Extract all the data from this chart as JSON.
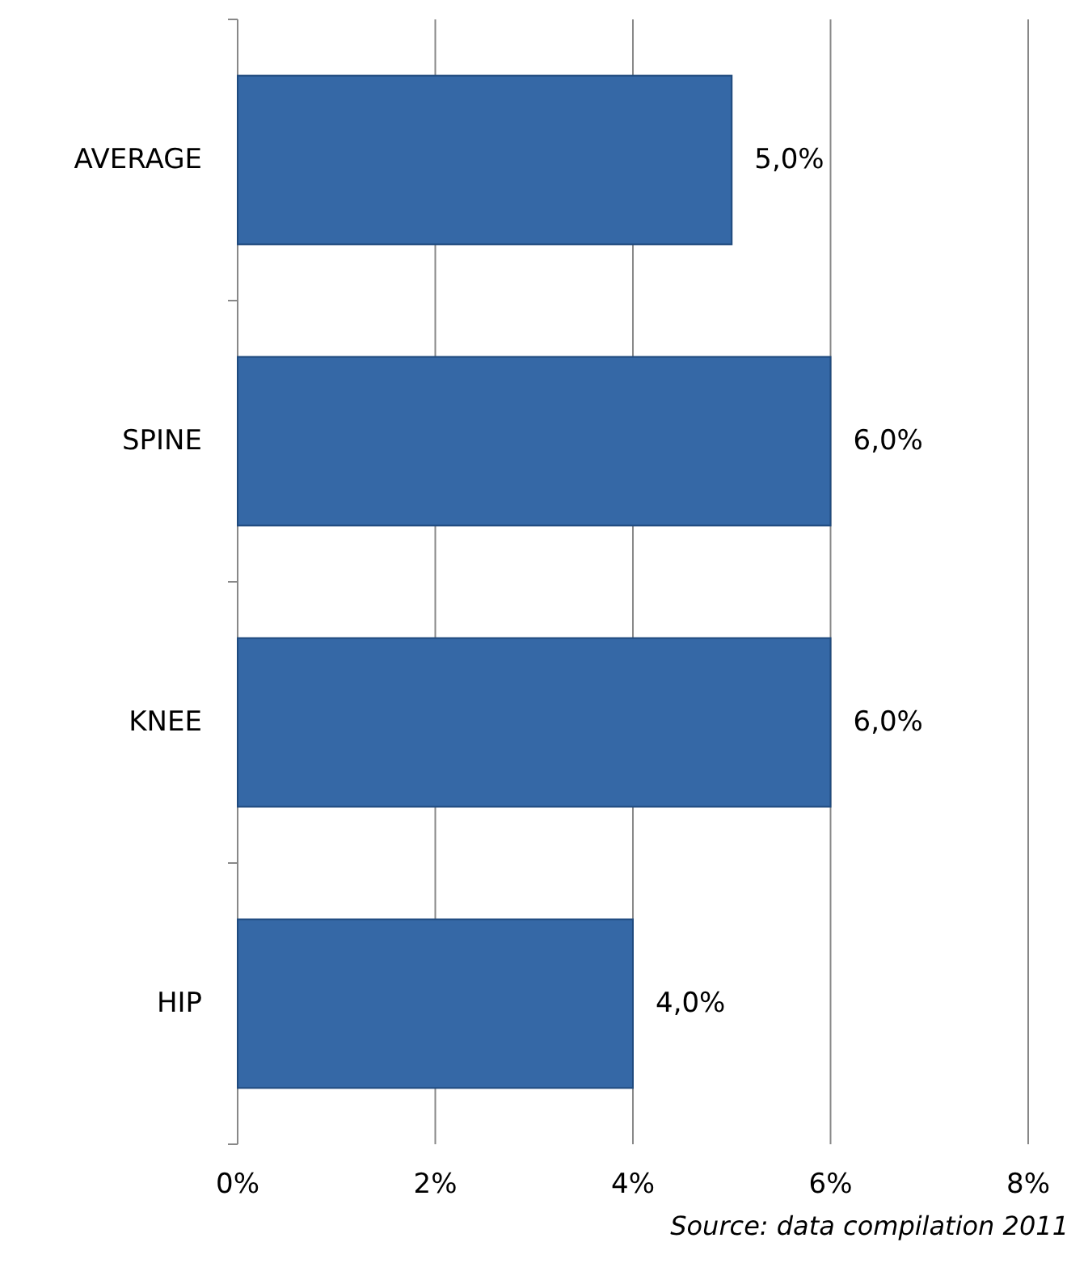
{
  "chart_data": {
    "type": "bar",
    "orientation": "horizontal",
    "categories": [
      "AVERAGE",
      "SPINE",
      "KNEE",
      "HIP"
    ],
    "values": [
      5,
      6,
      6,
      4
    ],
    "value_labels": [
      "5,0%",
      "6,0%",
      "6,0%",
      "4,0%"
    ],
    "color": "#3568a6",
    "xlim": [
      0,
      8
    ],
    "xticks": [
      {
        "value": 0,
        "label": "0%"
      },
      {
        "value": 2,
        "label": "2%"
      },
      {
        "value": 4,
        "label": "4%"
      },
      {
        "value": 6,
        "label": "6%"
      },
      {
        "value": 8,
        "label": "8%"
      }
    ],
    "grid": "x",
    "annotations": [
      "Source: data compilation 2011"
    ]
  }
}
